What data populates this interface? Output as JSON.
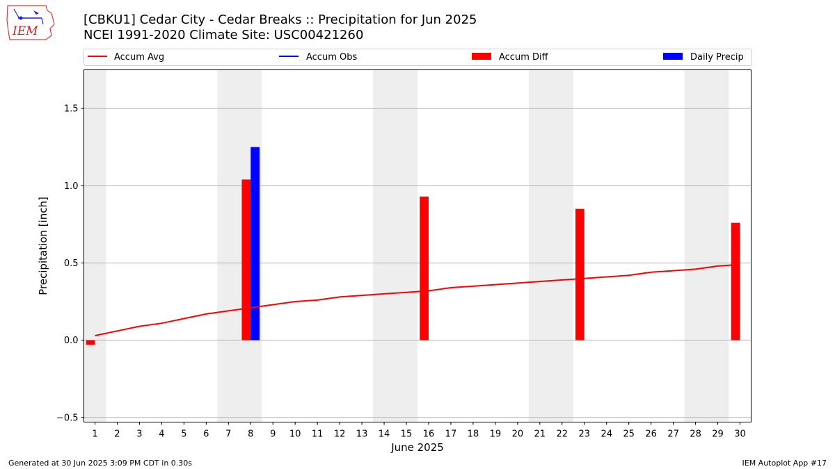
{
  "title": {
    "line1": "[CBKU1] Cedar City - Cedar Breaks :: Precipitation for Jun 2025",
    "line2": "NCEI 1991-2020 Climate Site: USC00421260"
  },
  "logo": {
    "text": "IEM"
  },
  "footer": {
    "generated": "Generated at 30 Jun 2025 3:09 PM CDT in 0.30s",
    "app": "IEM Autoplot App #17"
  },
  "colors": {
    "avg": "#ff0000",
    "obs": "#0000ff",
    "diff": "#ff0000",
    "daily": "#0000ff",
    "weekend": "#eeeeee",
    "grid": "#b0b0b0"
  },
  "chart_data": {
    "type": "bar",
    "title": "[CBKU1] Cedar City - Cedar Breaks :: Precipitation for Jun 2025",
    "xlabel": "June 2025",
    "ylabel": "Precipitation [inch]",
    "ylim": [
      -0.53,
      1.75
    ],
    "yticks": [
      -0.5,
      0.0,
      0.5,
      1.0,
      1.5
    ],
    "ytick_labels": [
      "−0.5",
      "0.0",
      "0.5",
      "1.0",
      "1.5"
    ],
    "grid": "horizontal",
    "x": [
      1,
      2,
      3,
      4,
      5,
      6,
      7,
      8,
      9,
      10,
      11,
      12,
      13,
      14,
      15,
      16,
      17,
      18,
      19,
      20,
      21,
      22,
      23,
      24,
      25,
      26,
      27,
      28,
      29,
      30
    ],
    "weekend_spans": [
      [
        0.5,
        1.5
      ],
      [
        6.5,
        8.5
      ],
      [
        13.5,
        15.5
      ],
      [
        20.5,
        22.5
      ],
      [
        27.5,
        29.5
      ]
    ],
    "legend": [
      "Accum Avg",
      "Accum Obs",
      "Accum Diff",
      "Daily Precip"
    ],
    "legend_placement": "top",
    "series": [
      {
        "name": "Accum Avg",
        "kind": "line",
        "values": [
          0.03,
          0.06,
          0.09,
          0.11,
          0.14,
          0.17,
          0.19,
          0.21,
          0.23,
          0.25,
          0.26,
          0.28,
          0.29,
          0.3,
          0.31,
          0.32,
          0.34,
          0.35,
          0.36,
          0.37,
          0.38,
          0.39,
          0.4,
          0.41,
          0.42,
          0.44,
          0.45,
          0.46,
          0.48,
          0.49
        ]
      },
      {
        "name": "Accum Diff",
        "kind": "bar",
        "points": [
          {
            "x": 1,
            "value": -0.03
          },
          {
            "x": 8,
            "value": 1.04
          },
          {
            "x": 16,
            "value": 0.93
          },
          {
            "x": 23,
            "value": 0.85
          },
          {
            "x": 30,
            "value": 0.76
          }
        ]
      },
      {
        "name": "Daily Precip",
        "kind": "bar",
        "points": [
          {
            "x": 8,
            "value": 1.25
          }
        ]
      }
    ]
  }
}
